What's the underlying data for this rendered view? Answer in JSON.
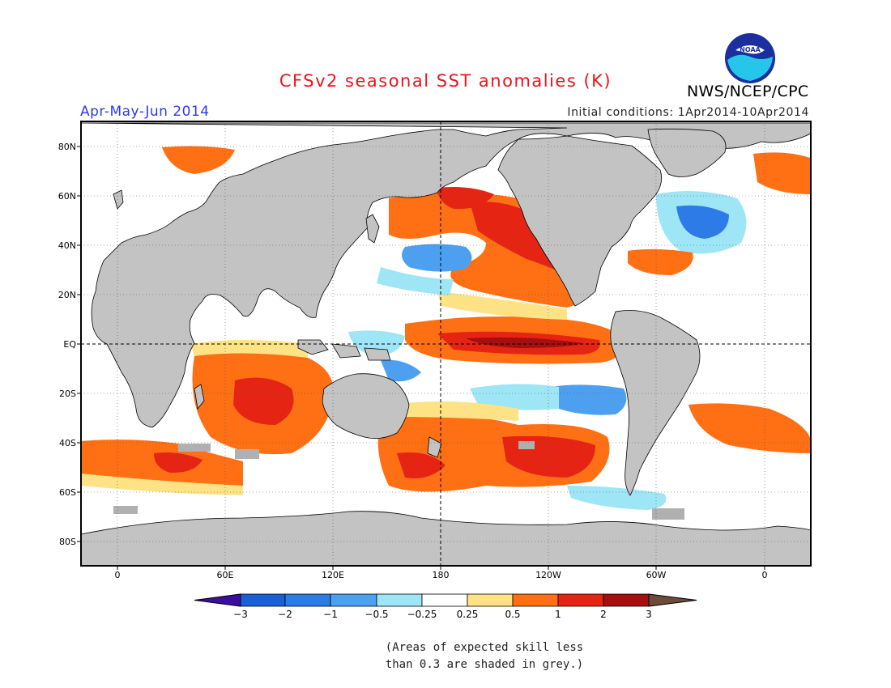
{
  "header": {
    "title": "CFSv2 seasonal SST anomalies (K)",
    "season": "Apr-May-Jun 2014",
    "initial_conditions": "Initial conditions: 1Apr2014-10Apr2014",
    "agency": "NWS/NCEP/CPC",
    "logo_text": "NOAA"
  },
  "colors": {
    "title": "#e8141c",
    "season": "#2a3ce8",
    "land": "#c3c3c3",
    "ocean": "#ffffff",
    "frame": "#000000"
  },
  "map": {
    "lat_labels": [
      "80N",
      "60N",
      "40N",
      "20N",
      "EQ",
      "20S",
      "40S",
      "60S",
      "80S"
    ],
    "lon_labels": [
      "0",
      "60E",
      "120E",
      "180",
      "120W",
      "60W",
      "0"
    ],
    "reference_lines": [
      "EQ",
      "180"
    ]
  },
  "colorbar": {
    "bins": [
      {
        "color": "#3a0fa0"
      },
      {
        "color": "#1a5fd4"
      },
      {
        "color": "#2d7be6"
      },
      {
        "color": "#4da0f0"
      },
      {
        "color": "#9ee5f5"
      },
      {
        "color": "#ffffff"
      },
      {
        "color": "#fde385"
      },
      {
        "color": "#ff6f14"
      },
      {
        "color": "#e52414"
      },
      {
        "color": "#a60f0f"
      },
      {
        "color": "#6e4a3a"
      }
    ],
    "tick_labels": [
      "-3",
      "-2",
      "-1",
      "-0.5",
      "-0.25",
      "0.25",
      "0.5",
      "1",
      "2",
      "3"
    ]
  },
  "note": {
    "line1": "(Areas of expected skill less",
    "line2": "than 0.3 are shaded in grey.)"
  }
}
